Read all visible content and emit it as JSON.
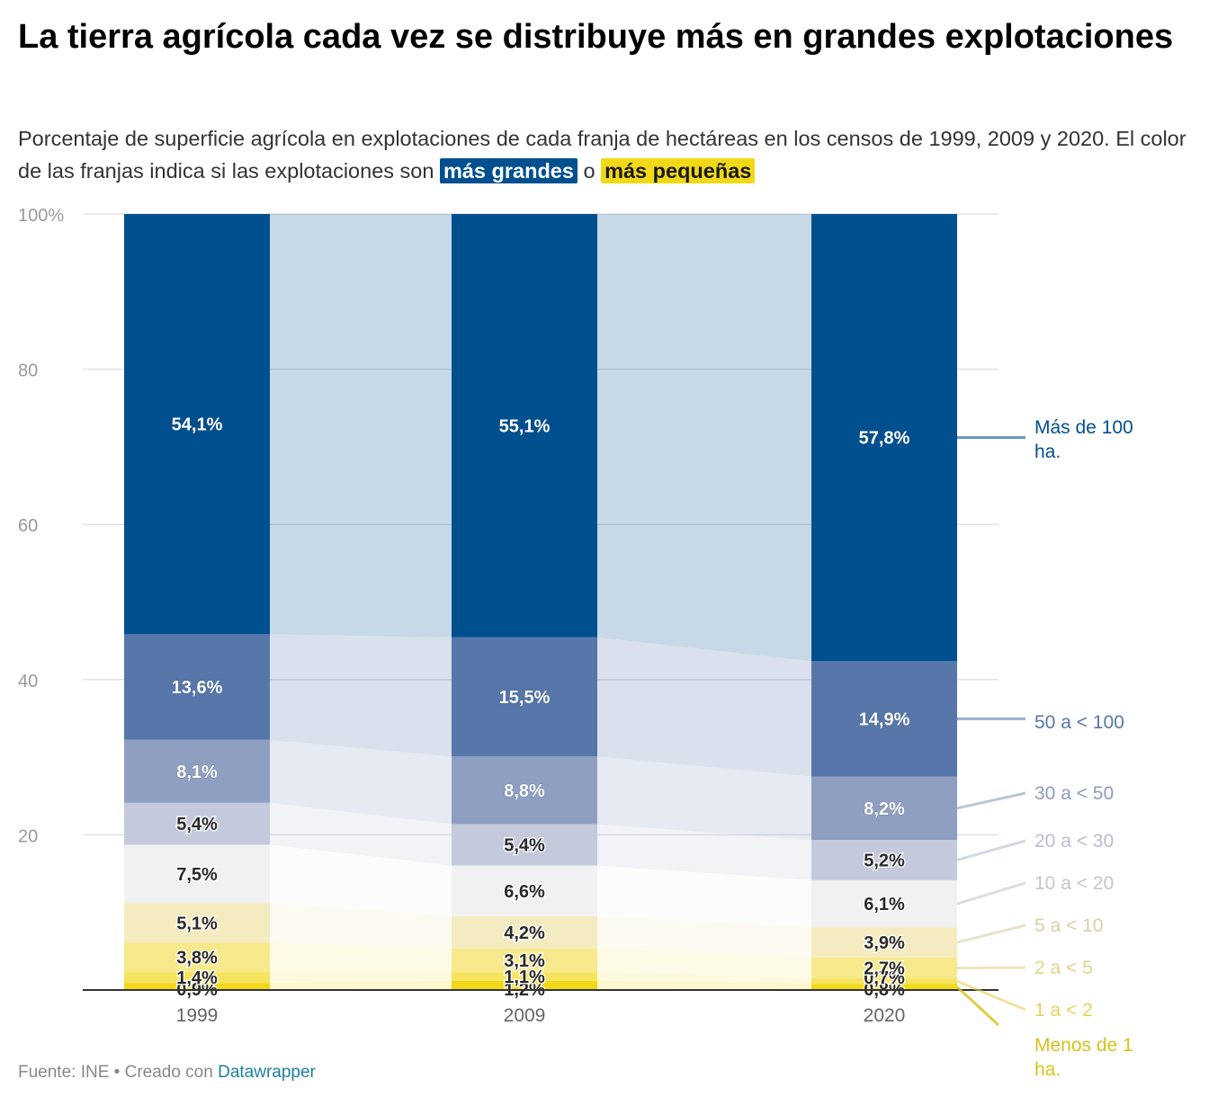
{
  "title": "La tierra agrícola cada vez se distribuye más en grandes explotaciones",
  "subtitle": {
    "text": "Porcentaje de superficie agrícola en explotaciones de cada franja de hectáreas en los censos de 1999, 2009 y 2020. El color de las franjas indica si las explotaciones son",
    "highlight_big": "más grandes",
    "connector": "o",
    "highlight_small": "más pequeñas"
  },
  "footer": {
    "source": "Fuente: INE • Creado con",
    "link": "Datawrapper"
  },
  "chart_data": {
    "type": "bar",
    "stacked": true,
    "categories": [
      "1999",
      "2009",
      "2020"
    ],
    "ylim": [
      0,
      100
    ],
    "yticks": [
      "0",
      "20",
      "40",
      "60",
      "80",
      "100%"
    ],
    "grid": true,
    "legend_position": "right",
    "series": [
      {
        "name": "Menos de 1 ha.",
        "values": [
          0.9,
          1.2,
          0.8
        ],
        "labels": [
          "0,9%",
          "1,2%",
          "0,8%"
        ],
        "color": "#f1d918",
        "legend_color": "#d9c21a"
      },
      {
        "name": "1 a < 2",
        "values": [
          1.4,
          1.1,
          0.7
        ],
        "labels": [
          "1,4%",
          "1,1%",
          "0,7%"
        ],
        "color": "#f6e35e",
        "legend_color": "#e5d25a"
      },
      {
        "name": "2 a < 5",
        "values": [
          3.8,
          3.1,
          2.7
        ],
        "labels": [
          "3,8%",
          "3,1%",
          "2,7%"
        ],
        "color": "#f7e98c",
        "legend_color": "#e2d48a"
      },
      {
        "name": "5 a < 10",
        "values": [
          5.1,
          4.2,
          3.9
        ],
        "labels": [
          "5,1%",
          "4,2%",
          "3,9%"
        ],
        "color": "#f4ecc0",
        "legend_color": "#d9cfa6"
      },
      {
        "name": "10 a < 20",
        "values": [
          7.5,
          6.6,
          6.1
        ],
        "labels": [
          "7,5%",
          "6,6%",
          "6,1%"
        ],
        "color": "#f1f1f1",
        "legend_color": "#c6c6c6"
      },
      {
        "name": "20 a < 30",
        "values": [
          5.4,
          5.4,
          5.2
        ],
        "labels": [
          "5,4%",
          "5,4%",
          "5,2%"
        ],
        "color": "#c4cadc",
        "legend_color": "#b8bed2"
      },
      {
        "name": "30 a < 50",
        "values": [
          8.1,
          8.8,
          8.2
        ],
        "labels": [
          "8,1%",
          "8,8%",
          "8,2%"
        ],
        "color": "#8f9fc2",
        "legend_color": "#8e9cbf"
      },
      {
        "name": "50 a < 100",
        "values": [
          13.6,
          15.5,
          14.9
        ],
        "labels": [
          "13,6%",
          "15,5%",
          "14,9%"
        ],
        "color": "#5777aa",
        "legend_color": "#5777aa"
      },
      {
        "name": "Más de 100 ha.",
        "values": [
          54.1,
          55.1,
          57.8
        ],
        "labels": [
          "54,1%",
          "55,1%",
          "57,8%"
        ],
        "color": "#00508f",
        "legend_color": "#00508f"
      }
    ]
  }
}
